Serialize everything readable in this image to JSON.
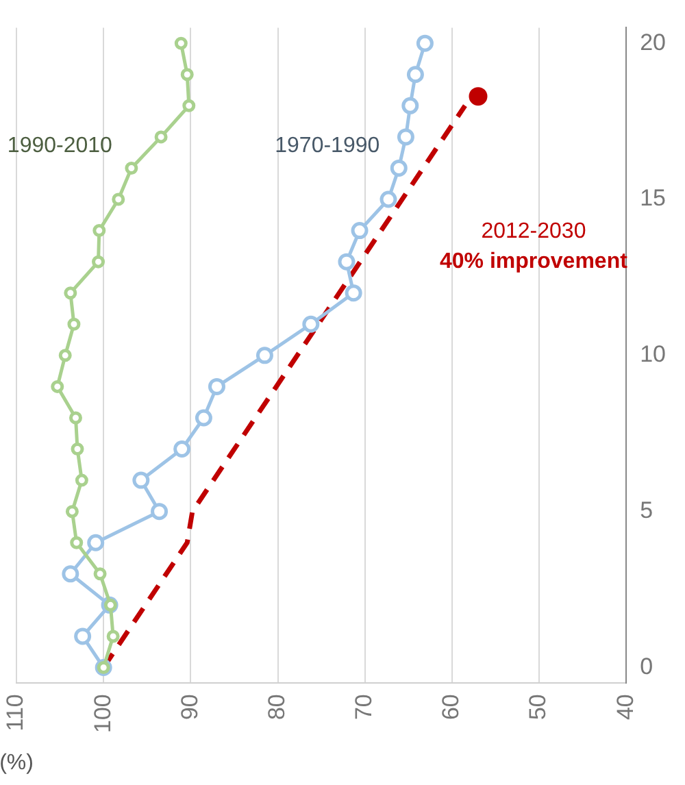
{
  "chart_data": {
    "type": "line",
    "xlabel": "(%)",
    "xlim": [
      110,
      40
    ],
    "xticks": [
      110,
      100,
      90,
      80,
      70,
      60,
      50,
      40
    ],
    "ylim": [
      -0.5,
      20.5
    ],
    "yticks": [
      0,
      5,
      10,
      15,
      20
    ],
    "grid": "x",
    "legend": false,
    "marker": "circle",
    "line_style": "solid",
    "series": [
      {
        "name": "1990-2010",
        "color": "#a9d18e",
        "x": [
          100,
          98.9,
          99.2,
          100.4,
          103.1,
          103.6,
          102.5,
          103.0,
          103.2,
          105.3,
          104.4,
          103.4,
          103.8,
          100.6,
          100.5,
          98.3,
          96.8,
          93.4,
          90.2,
          90.4,
          91.1
        ],
        "values": [
          0,
          1,
          2,
          3,
          4,
          5,
          6,
          7,
          8,
          9,
          10,
          11,
          12,
          13,
          14,
          15,
          16,
          17,
          18,
          19,
          20
        ]
      },
      {
        "name": "1970-1990",
        "color": "#9dc3e6",
        "x": [
          100,
          102.4,
          99.3,
          103.8,
          100.9,
          93.6,
          95.7,
          91.0,
          88.5,
          87.0,
          81.5,
          76.2,
          71.3,
          72.1,
          70.6,
          67.3,
          66.1,
          65.3,
          64.8,
          64.2,
          63.1
        ],
        "values": [
          0,
          1,
          2,
          3,
          4,
          5,
          6,
          7,
          8,
          9,
          10,
          11,
          12,
          13,
          14,
          15,
          16,
          17,
          18,
          19,
          20
        ]
      },
      {
        "name": "2012-2030",
        "color": "#c00000",
        "line_style": "dashed",
        "marker": "none",
        "x": [
          100,
          90.4,
          89.8,
          58.5
        ],
        "values": [
          0,
          4,
          5,
          18
        ]
      },
      {
        "type": "scatter",
        "color": "#c00000",
        "x": [
          57
        ],
        "values": [
          18.3
        ]
      }
    ],
    "annotations": [
      "40% improvement"
    ]
  }
}
